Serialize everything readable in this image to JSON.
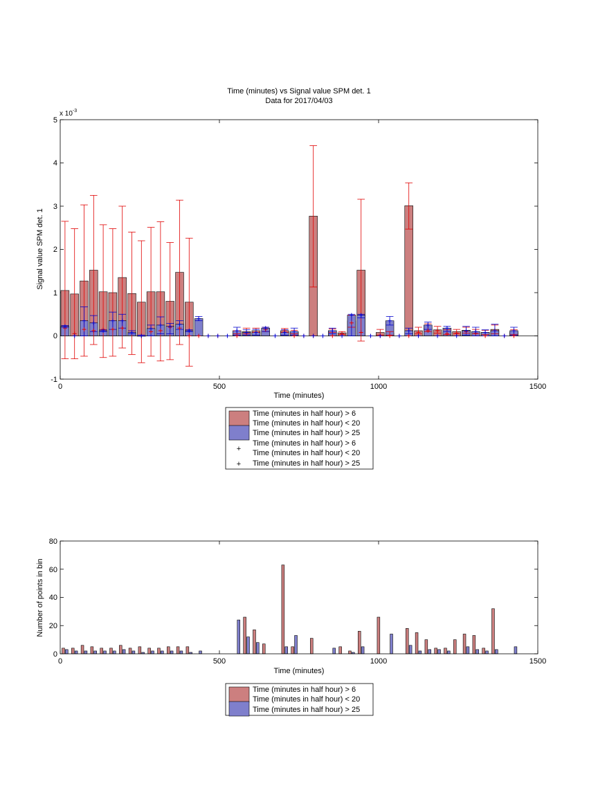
{
  "colors": {
    "series_red_fill": "#cc7f7f",
    "series_blue_fill": "#7f7fcc",
    "red_marks": "#e00000",
    "blue_marks": "#0000cc",
    "axis": "#000000"
  },
  "chart_data": [
    {
      "type": "bar",
      "title": "Time (minutes) vs Signal value SPM det. 1",
      "subtitle": "Data for 2017/04/03",
      "xlabel": "Time (minutes)",
      "ylabel": "Signal value SPM det. 1",
      "y_exponent": "x 10",
      "y_exponent_power": "-3",
      "xlim": [
        0,
        1500
      ],
      "ylim": [
        -1,
        5
      ],
      "grid": false,
      "legend_position": "bottom-center",
      "x_tick_labels": [
        "0",
        "500",
        "1000",
        "1500"
      ],
      "y_tick_labels": [
        "-1",
        "0",
        "1",
        "2",
        "3",
        "4",
        "5"
      ],
      "legend_entries": [
        "Time (minutes in half hour) > 6",
        "Time (minutes in half hour) < 20",
        "Time (minutes in half hour) > 25",
        "Time (minutes in half hour) > 6",
        "Time (minutes in half hour) < 20",
        "Time (minutes in half hour) > 25"
      ],
      "series": [
        {
          "values_x": [
            15,
            45,
            75,
            105,
            135,
            165,
            195,
            225,
            255,
            285,
            315,
            345,
            375,
            405,
            555,
            585,
            615,
            645,
            705,
            735,
            795,
            855,
            885,
            915,
            945,
            1005,
            1035,
            1095,
            1125,
            1155,
            1185,
            1215,
            1245,
            1275,
            1305,
            1335,
            1365,
            1425
          ],
          "values_y": [
            1.05,
            0.97,
            1.27,
            1.52,
            1.02,
            1.0,
            1.35,
            0.98,
            0.78,
            1.02,
            1.02,
            0.8,
            1.47,
            0.78,
            0.08,
            0.1,
            0.12,
            0.15,
            0.12,
            0.08,
            2.77,
            0.12,
            0.07,
            0.35,
            1.52,
            0.08,
            0.06,
            3.01,
            0.12,
            0.18,
            0.14,
            0.08,
            0.1,
            0.13,
            0.1,
            0.08,
            0.15,
            0.08
          ],
          "err_low": [
            -0.53,
            -0.53,
            -0.47,
            -0.2,
            -0.5,
            -0.47,
            -0.28,
            -0.43,
            -0.62,
            -0.47,
            -0.58,
            -0.55,
            -0.2,
            -0.7,
            0.05,
            0.05,
            0.08,
            0.1,
            0.08,
            0.05,
            1.13,
            0.08,
            0.03,
            0.2,
            -0.12,
            0.02,
            0.02,
            2.47,
            0.05,
            0.1,
            0.06,
            0.03,
            0.05,
            0.06,
            0.05,
            0.03,
            0.05,
            0.03
          ],
          "err_high": [
            2.65,
            2.48,
            3.03,
            3.25,
            2.57,
            2.48,
            3.0,
            2.4,
            2.2,
            2.51,
            2.64,
            2.16,
            3.14,
            2.26,
            0.12,
            0.18,
            0.18,
            0.2,
            0.17,
            0.13,
            4.4,
            0.16,
            0.1,
            0.48,
            3.16,
            0.15,
            0.1,
            3.54,
            0.2,
            0.28,
            0.22,
            0.14,
            0.15,
            0.2,
            0.15,
            0.13,
            0.25,
            0.14
          ]
        },
        {
          "values_x": [
            15,
            75,
            105,
            135,
            165,
            195,
            225,
            255,
            285,
            315,
            345,
            375,
            405,
            435,
            555,
            585,
            615,
            645,
            705,
            735,
            855,
            915,
            945,
            1035,
            1095,
            1155,
            1215,
            1275,
            1305,
            1335,
            1365,
            1425
          ],
          "values_y": [
            0.22,
            0.35,
            0.3,
            0.12,
            0.35,
            0.35,
            0.08,
            0.0,
            0.17,
            0.25,
            0.22,
            0.27,
            0.12,
            0.4,
            0.12,
            0.08,
            0.08,
            0.18,
            0.08,
            0.1,
            0.12,
            0.48,
            0.48,
            0.35,
            0.12,
            0.25,
            0.18,
            0.12,
            0.1,
            0.08,
            0.12,
            0.12
          ],
          "err_low": [
            0.2,
            0.0,
            0.1,
            0.1,
            0.15,
            0.18,
            0.05,
            0.0,
            0.0,
            0.05,
            0.05,
            0.15,
            0.1,
            0.35,
            0.02,
            0.02,
            0.02,
            0.1,
            0.02,
            0.02,
            0.05,
            0.0,
            0.42,
            0.25,
            0.05,
            0.15,
            0.1,
            0.02,
            0.0,
            0.0,
            0.0,
            0.02
          ],
          "err_high": [
            0.24,
            0.67,
            0.47,
            0.14,
            0.55,
            0.5,
            0.12,
            0.02,
            0.25,
            0.44,
            0.29,
            0.35,
            0.14,
            0.45,
            0.2,
            0.14,
            0.15,
            0.2,
            0.14,
            0.18,
            0.18,
            0.5,
            0.5,
            0.45,
            0.18,
            0.32,
            0.22,
            0.22,
            0.2,
            0.14,
            0.27,
            0.2
          ]
        },
        {
          "name": "Time (minutes in half hour) < 20",
          "values_x": [
            15,
            45,
            75,
            105,
            135,
            165,
            195,
            225,
            255,
            285,
            315,
            345,
            375,
            405,
            435,
            465,
            495,
            525,
            555,
            585,
            615,
            645,
            675,
            705,
            735,
            765,
            795,
            825,
            855,
            885,
            915,
            945,
            975,
            1005,
            1035,
            1065,
            1095,
            1125,
            1155,
            1185,
            1215,
            1245,
            1275,
            1305,
            1335,
            1365,
            1395,
            1425
          ],
          "values_y": [
            0.18,
            0.05,
            0.15,
            0.12,
            0.15,
            0.15,
            0.18,
            0.08,
            0.0,
            0.1,
            0.12,
            0.2,
            0.18,
            0.0,
            0.0,
            0.0,
            0.0,
            0.0,
            0.0,
            0.05,
            0.08,
            0.15,
            0.0,
            0.12,
            0.0,
            0.0,
            0.0,
            0.0,
            0.0,
            0.05,
            0.3,
            0.08,
            0.0,
            0.0,
            0.0,
            0.0,
            0.0,
            0.08,
            0.12,
            0.12,
            0.05,
            0.06,
            0.1,
            0.06,
            0.0,
            0.12,
            0.0,
            0.0
          ]
        },
        {
          "name": "Time (minutes in half hour) > 25",
          "values_x": [
            15,
            45,
            75,
            105,
            135,
            165,
            195,
            225,
            255,
            285,
            315,
            345,
            375,
            405,
            435,
            465,
            495,
            525,
            555,
            585,
            615,
            645,
            675,
            705,
            735,
            765,
            795,
            825,
            855,
            885,
            915,
            945,
            975,
            1005,
            1035,
            1065,
            1095,
            1125,
            1155,
            1185,
            1215,
            1245,
            1275,
            1305,
            1335,
            1365,
            1395,
            1425
          ],
          "values_y": [
            0.22,
            0.0,
            0.35,
            0.3,
            0.12,
            0.35,
            0.35,
            0.08,
            0.0,
            0.17,
            0.25,
            0.22,
            0.27,
            0.12,
            0.4,
            0.0,
            0.0,
            0.0,
            0.12,
            0.08,
            0.08,
            0.18,
            0.0,
            0.08,
            0.1,
            0.0,
            0.0,
            0.0,
            0.12,
            0.0,
            0.48,
            0.48,
            0.0,
            0.0,
            0.35,
            0.0,
            0.12,
            0.0,
            0.25,
            0.0,
            0.18,
            0.0,
            0.12,
            0.1,
            0.08,
            0.12,
            0.0,
            0.12
          ]
        }
      ]
    },
    {
      "type": "bar",
      "xlabel": "Time (minutes)",
      "ylabel": "Number of points in bin",
      "xlim": [
        0,
        1500
      ],
      "ylim": [
        0,
        80
      ],
      "grid": false,
      "legend_position": "bottom-center",
      "x_tick_labels": [
        "0",
        "500",
        "1000",
        "1500"
      ],
      "y_tick_labels": [
        "0",
        "20",
        "40",
        "60",
        "80"
      ],
      "legend_entries": [
        "Time (minutes in half hour) > 6",
        "Time (minutes in half hour) < 20",
        "Time (minutes in half hour) > 25"
      ],
      "x": [
        15,
        45,
        75,
        105,
        135,
        165,
        195,
        225,
        255,
        285,
        315,
        345,
        375,
        405,
        435,
        465,
        495,
        525,
        555,
        585,
        615,
        645,
        675,
        705,
        735,
        765,
        795,
        825,
        855,
        885,
        915,
        945,
        975,
        1005,
        1035,
        1065,
        1095,
        1125,
        1155,
        1185,
        1215,
        1245,
        1275,
        1305,
        1335,
        1365,
        1395,
        1425
      ],
      "series": [
        {
          "values": [
            4,
            4,
            6,
            5,
            4,
            4,
            6,
            4,
            5,
            4,
            4,
            5,
            5,
            5,
            0,
            0,
            0,
            0,
            0,
            26,
            17,
            7,
            0,
            63,
            5,
            0,
            11,
            0,
            0,
            5,
            2,
            16,
            0,
            26,
            0,
            0,
            18,
            15,
            10,
            4,
            4,
            10,
            14,
            13,
            4,
            32,
            0,
            0
          ]
        },
        {
          "values": [
            3,
            2,
            2,
            2,
            2,
            2,
            3,
            2,
            1,
            2,
            2,
            2,
            2,
            1,
            2,
            0,
            0,
            0,
            24,
            12,
            8,
            0,
            0,
            5,
            13,
            0,
            0,
            0,
            4,
            0,
            1,
            5,
            0,
            0,
            14,
            0,
            6,
            2,
            3,
            3,
            2,
            0,
            5,
            3,
            2,
            3,
            0,
            5
          ]
        }
      ]
    }
  ]
}
